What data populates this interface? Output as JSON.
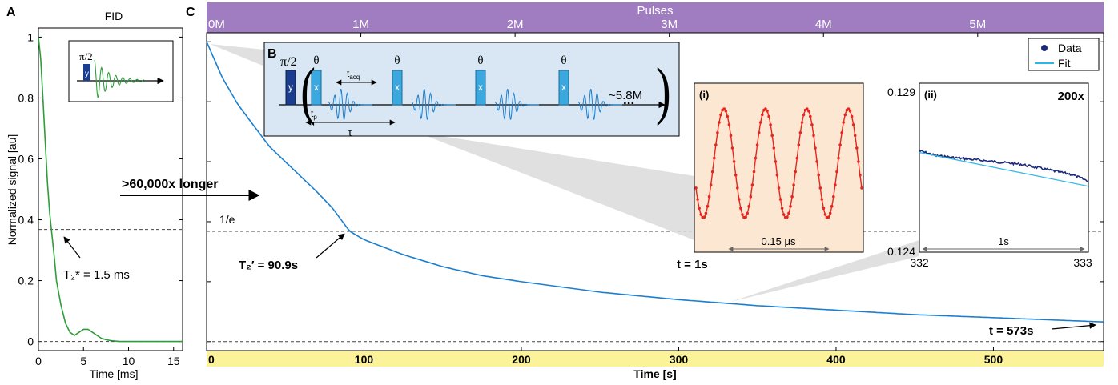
{
  "panels": {
    "a": "A",
    "b": "B",
    "c": "C"
  },
  "colors": {
    "fid_curve": "#2e9e3a",
    "main_curve": "#1b7fd0",
    "inset_i_curve": "#e8261f",
    "inset_ii_data": "#1c2a7a",
    "inset_ii_fit": "#29b6e8",
    "pulses_bar": "#a07cc0",
    "time_bar": "#fbf29a",
    "schematic_bg": "#d8e7f3",
    "inset_i_bg": "#fbe7d2",
    "pulse_y": "#1a3d8f",
    "pulse_x": "#3ba9e0"
  },
  "annotations": {
    "arrow_label": ">60,000x longer",
    "one_over_e": "1/e",
    "t2_star": "T₂* = 1.5 ms",
    "t2_prime": "T₂′ = 90.9s",
    "t_end": "t = 573s",
    "t_1s": "t = 1s",
    "fid_inset_pulse_label": "π/2",
    "fid_inset_pulse_axis": "y"
  },
  "schematic": {
    "pi2": "π/2",
    "y": "y",
    "theta": "θ",
    "x": "x",
    "tacq": "t",
    "tacq_sub": "acq",
    "tp": "t",
    "tp_sub": "p",
    "tau": "τ",
    "count": "~5.8M",
    "dots": "..."
  },
  "chart_data": [
    {
      "id": "A",
      "type": "line",
      "title": "FID",
      "xlabel": "Time [ms]",
      "ylabel": "Normalized signal [au]",
      "xlim": [
        0,
        16
      ],
      "ylim": [
        -0.03,
        1.03
      ],
      "xticks": [
        0,
        5,
        10,
        15
      ],
      "yticks": [
        0,
        0.2,
        0.4,
        0.6,
        0.8,
        1
      ],
      "ytick_labels": [
        "0",
        "0.2",
        "0.4",
        "0.6",
        "0.8",
        "1"
      ],
      "reference_lines": [
        0.368,
        0
      ],
      "series": [
        {
          "x": [
            0,
            0.25,
            0.5,
            0.75,
            1.0,
            1.25,
            1.5,
            1.75,
            2.0,
            2.5,
            3.0,
            3.5,
            4.0,
            4.5,
            5.0,
            5.5,
            6.0,
            6.5,
            7.0,
            7.5,
            8.0,
            9.0,
            10.0,
            12.0,
            14.0,
            16.0
          ],
          "y": [
            1.0,
            0.93,
            0.8,
            0.66,
            0.52,
            0.42,
            0.35,
            0.28,
            0.2,
            0.12,
            0.06,
            0.03,
            0.02,
            0.03,
            0.04,
            0.04,
            0.03,
            0.02,
            0.01,
            0.006,
            0.003,
            0.0,
            0.0,
            0.0,
            0.0,
            0.0
          ]
        }
      ]
    },
    {
      "id": "C",
      "type": "line",
      "xlabel": "Time [s]",
      "top_axis_label": "Pulses",
      "xlim": [
        0,
        570
      ],
      "ylim": [
        -0.03,
        1.03
      ],
      "xticks": [
        0,
        100,
        200,
        300,
        400,
        500
      ],
      "top_ticks": [
        0,
        98,
        196,
        294,
        392,
        490
      ],
      "top_tick_labels": [
        "0M",
        "1M",
        "2M",
        "3M",
        "4M",
        "5M"
      ],
      "reference_lines": [
        0.368,
        0
      ],
      "series": [
        {
          "x": [
            0,
            10,
            20,
            30,
            40,
            50,
            60,
            70,
            80,
            90.9,
            100,
            125,
            150,
            175,
            200,
            250,
            300,
            350,
            400,
            450,
            500,
            573
          ],
          "y": [
            1.0,
            0.88,
            0.79,
            0.72,
            0.65,
            0.6,
            0.55,
            0.5,
            0.445,
            0.368,
            0.34,
            0.29,
            0.25,
            0.22,
            0.2,
            0.165,
            0.14,
            0.12,
            0.105,
            0.09,
            0.08,
            0.065
          ]
        }
      ]
    },
    {
      "id": "C-i",
      "type": "line",
      "label": "(i)",
      "span_label": "0.15 μs",
      "cycles": 4,
      "ylim": [
        -1.1,
        1.1
      ],
      "series": [
        {
          "x": [
            0,
            0.5,
            1.0,
            1.5,
            2.0,
            2.5,
            3.0,
            3.5,
            4.0,
            4.5
          ],
          "y": [
            0.0,
            1.0,
            0.0,
            -1.0,
            0.0,
            1.0,
            0.0,
            -1.0,
            0.0,
            1.0
          ]
        }
      ]
    },
    {
      "id": "C-ii",
      "type": "line",
      "label": "(ii)",
      "zoom": "200x",
      "xlim": [
        332,
        333
      ],
      "ylim": [
        0.124,
        0.129
      ],
      "xtick_labels": [
        "332",
        "333"
      ],
      "ytick_labels": [
        "0.129",
        "0.124"
      ],
      "span_label": "1s",
      "legend": {
        "position": "top-right",
        "entries": [
          "Data",
          "Fit"
        ]
      },
      "series": [
        {
          "name": "Data",
          "x": [
            332,
            332.1,
            332.2,
            332.3,
            332.4,
            332.5,
            332.6,
            332.7,
            332.8,
            332.9,
            333
          ],
          "y": [
            0.127,
            0.12685,
            0.1268,
            0.12675,
            0.1267,
            0.12665,
            0.1266,
            0.1265,
            0.1264,
            0.1263,
            0.1261
          ]
        },
        {
          "name": "Fit",
          "x": [
            332,
            333
          ],
          "y": [
            0.12695,
            0.12595
          ]
        }
      ]
    }
  ]
}
